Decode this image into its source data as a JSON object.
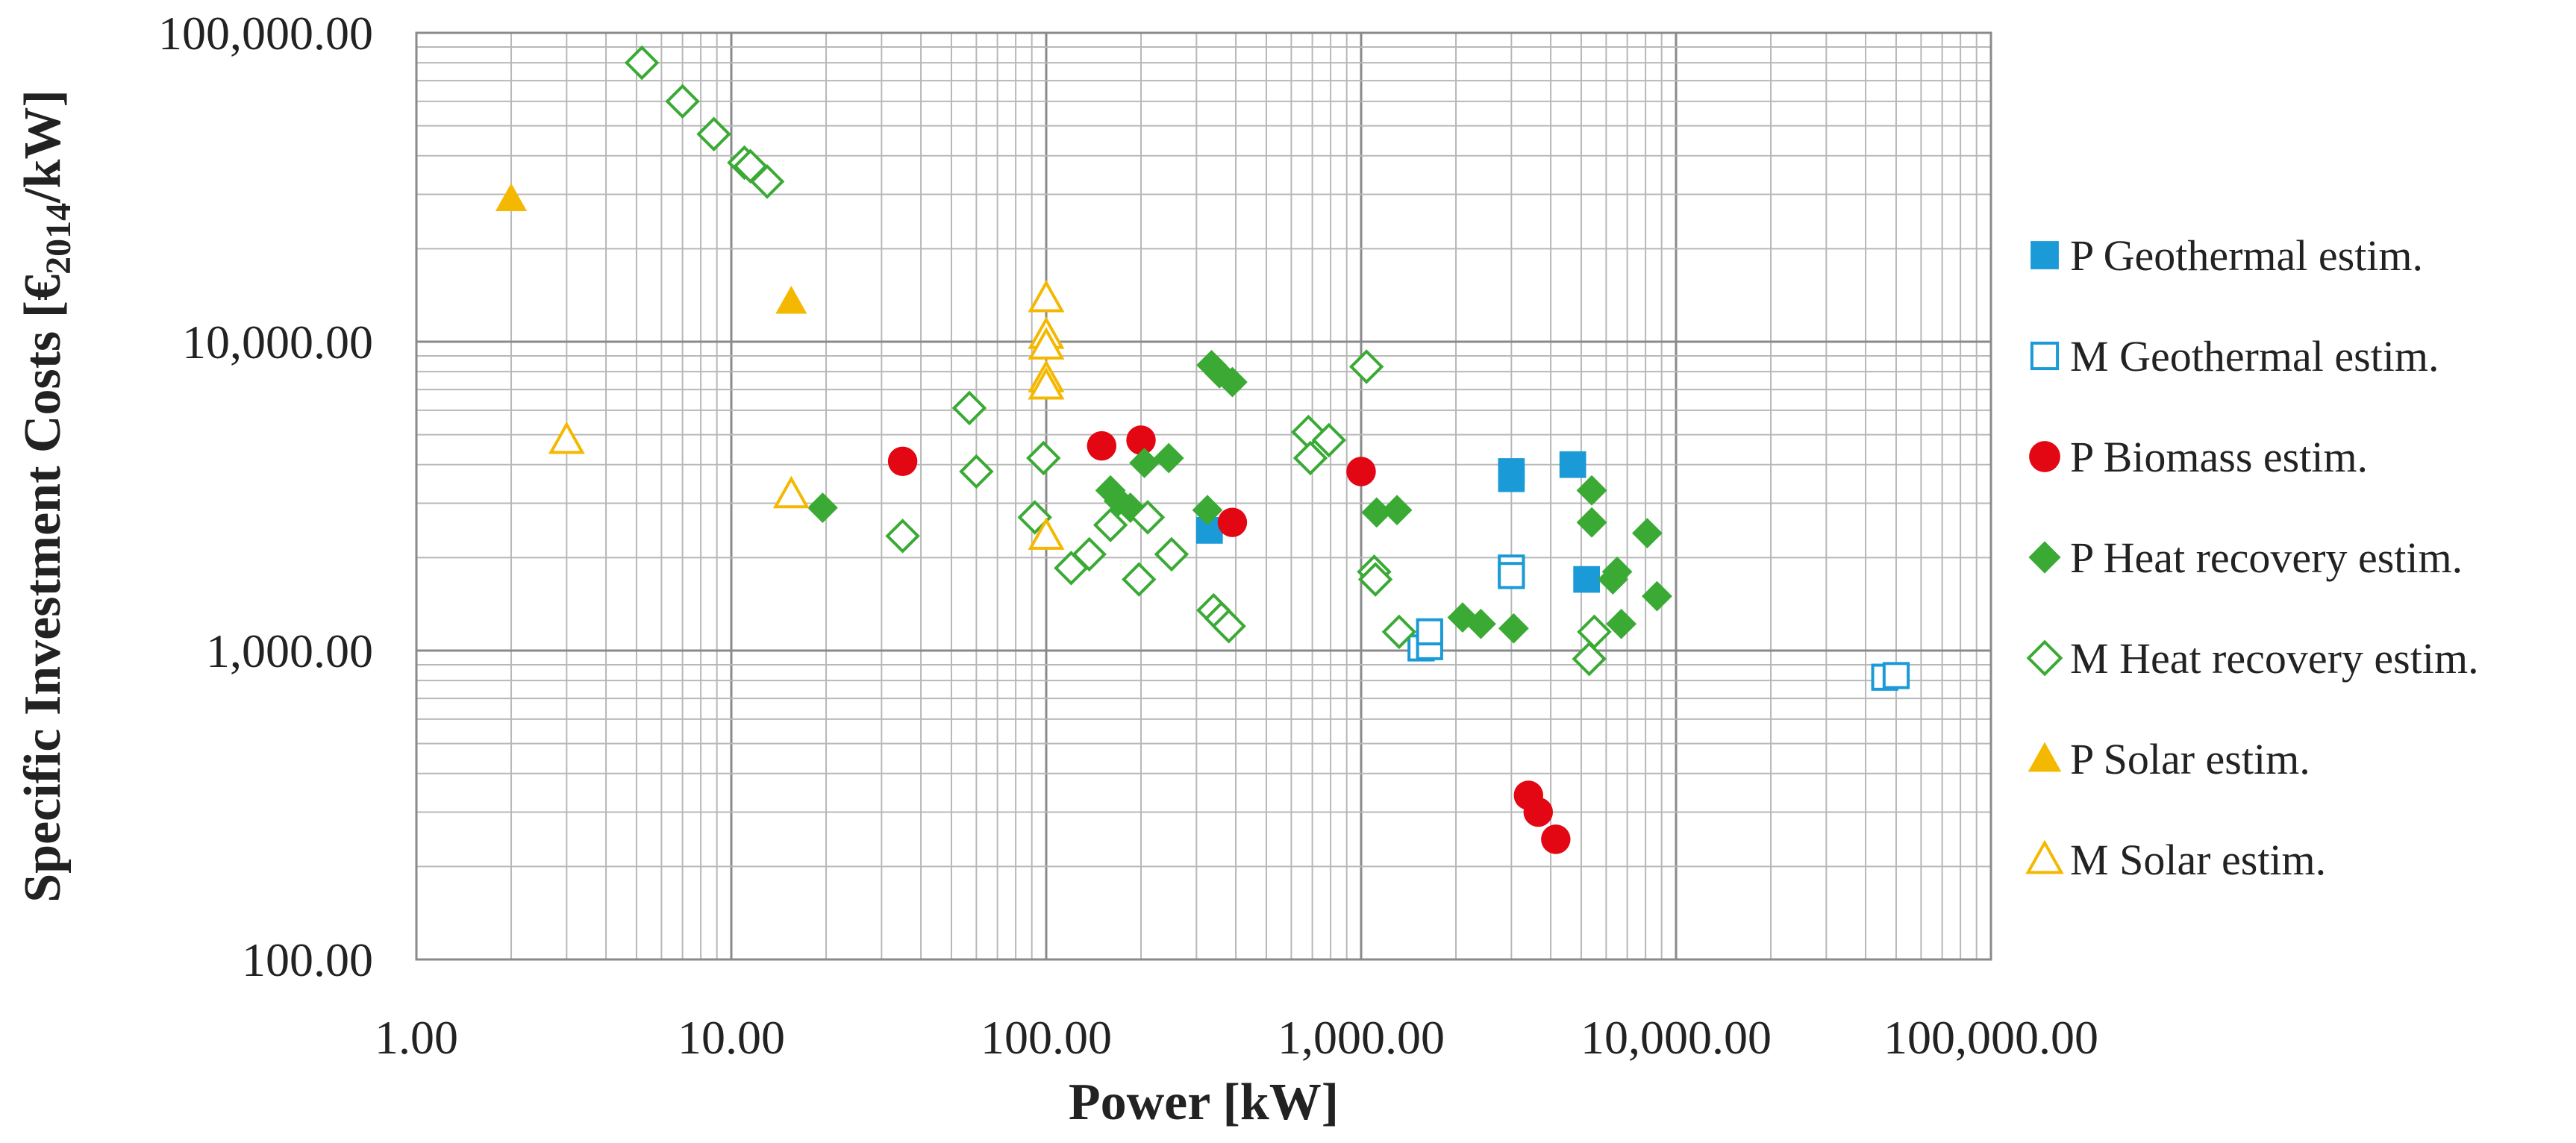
{
  "chart_data": {
    "type": "scatter",
    "xscale": "log",
    "yscale": "log",
    "xlim": [
      1,
      100000
    ],
    "ylim": [
      100,
      100000
    ],
    "xlabel": "Power [kW]",
    "ylabel": {
      "prefix": "Specific Investment Costs [€",
      "subscript": "2014",
      "suffix": "/kW]"
    },
    "x_ticks": [
      {
        "value": 1,
        "label": "1.00"
      },
      {
        "value": 10,
        "label": "10.00"
      },
      {
        "value": 100,
        "label": "100.00"
      },
      {
        "value": 1000,
        "label": "1,000.00"
      },
      {
        "value": 10000,
        "label": "10,000.00"
      },
      {
        "value": 100000,
        "label": "100,000.00"
      }
    ],
    "y_ticks": [
      {
        "value": 100,
        "label": "100.00"
      },
      {
        "value": 1000,
        "label": "1,000.00"
      },
      {
        "value": 10000,
        "label": "10,000.00"
      },
      {
        "value": 100000,
        "label": "100,000.00"
      }
    ],
    "grid": "major and minor",
    "legend_position": "right",
    "series": [
      {
        "name": "P Geothermal estim.",
        "marker": "square",
        "filled": true,
        "color": "#1a9ad6",
        "points": [
          [
            330,
            2450
          ],
          [
            3000,
            3800
          ],
          [
            3000,
            3600
          ],
          [
            4700,
            4000
          ],
          [
            5200,
            1700
          ]
        ]
      },
      {
        "name": "M Geothermal estim.",
        "marker": "square",
        "filled": false,
        "color": "#1a9ad6",
        "points": [
          [
            3000,
            1850
          ],
          [
            3000,
            1750
          ],
          [
            1550,
            1020
          ],
          [
            1650,
            1030
          ],
          [
            1650,
            1150
          ],
          [
            46000,
            820
          ],
          [
            50000,
            830
          ]
        ]
      },
      {
        "name": "P Biomass estim.",
        "marker": "circle",
        "filled": true,
        "color": "#e30613",
        "points": [
          [
            35,
            4100
          ],
          [
            150,
            4600
          ],
          [
            200,
            4800
          ],
          [
            390,
            2600
          ],
          [
            1000,
            3800
          ],
          [
            3400,
            340
          ],
          [
            3650,
            300
          ],
          [
            4150,
            245
          ]
        ]
      },
      {
        "name": "P Heat recovery estim.",
        "marker": "diamond",
        "filled": true,
        "color": "#3aaa35",
        "points": [
          [
            19.5,
            2900
          ],
          [
            160,
            3300
          ],
          [
            170,
            3050
          ],
          [
            185,
            2900
          ],
          [
            205,
            4050
          ],
          [
            245,
            4200
          ],
          [
            325,
            2850
          ],
          [
            335,
            8400
          ],
          [
            355,
            7900
          ],
          [
            390,
            7400
          ],
          [
            1120,
            2800
          ],
          [
            1300,
            2850
          ],
          [
            2100,
            1280
          ],
          [
            2400,
            1220
          ],
          [
            3050,
            1180
          ],
          [
            5400,
            3300
          ],
          [
            5400,
            2600
          ],
          [
            6300,
            1700
          ],
          [
            6500,
            1800
          ],
          [
            6700,
            1220
          ],
          [
            8100,
            2400
          ],
          [
            8700,
            1500
          ]
        ]
      },
      {
        "name": "M Heat recovery estim.",
        "marker": "diamond",
        "filled": false,
        "color": "#3aaa35",
        "points": [
          [
            5.2,
            80000
          ],
          [
            7,
            60000
          ],
          [
            8.8,
            47000
          ],
          [
            11,
            38000
          ],
          [
            11.5,
            37000
          ],
          [
            13,
            33000
          ],
          [
            35,
            2350
          ],
          [
            57,
            6100
          ],
          [
            60,
            3800
          ],
          [
            92,
            2700
          ],
          [
            98,
            4200
          ],
          [
            120,
            1850
          ],
          [
            137,
            2050
          ],
          [
            160,
            2550
          ],
          [
            197,
            1700
          ],
          [
            210,
            2700
          ],
          [
            250,
            2050
          ],
          [
            340,
            1350
          ],
          [
            360,
            1270
          ],
          [
            380,
            1200
          ],
          [
            680,
            5100
          ],
          [
            690,
            4200
          ],
          [
            790,
            4800
          ],
          [
            1040,
            8300
          ],
          [
            1100,
            1800
          ],
          [
            1110,
            1700
          ],
          [
            1320,
            1150
          ],
          [
            5300,
            940
          ],
          [
            5500,
            1150
          ]
        ]
      },
      {
        "name": "P Solar estim.",
        "marker": "triangle",
        "filled": true,
        "color": "#f5b800",
        "points": [
          [
            2,
            29000
          ],
          [
            15.5,
            13500
          ]
        ]
      },
      {
        "name": "M Solar estim.",
        "marker": "triangle",
        "filled": false,
        "color": "#f5b800",
        "points": [
          [
            3,
            4800
          ],
          [
            15.5,
            3200
          ],
          [
            100,
            13800
          ],
          [
            100,
            10500
          ],
          [
            100,
            9700
          ],
          [
            100,
            7600
          ],
          [
            100,
            7200
          ],
          [
            100,
            2350
          ]
        ]
      }
    ]
  }
}
